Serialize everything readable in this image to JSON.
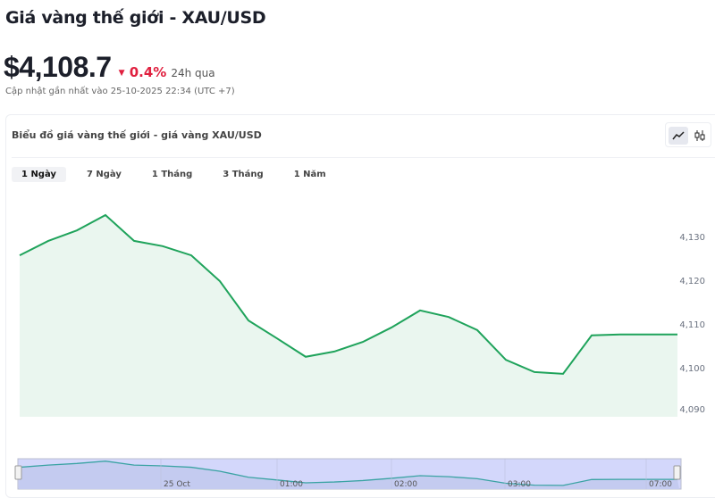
{
  "header": {
    "title": "Giá vàng thế giới - XAU/USD",
    "price": "$4,108.7",
    "change": "0.4%",
    "change_direction": "down",
    "change_color": "#e0203f",
    "change_period": "24h qua",
    "updated": "Cập nhật gần nhất vào 25-10-2025 22:34 (UTC +7)"
  },
  "card": {
    "title": "Biểu đồ giá vàng thế giới - giá vàng XAU/USD",
    "chart_types": [
      {
        "icon": "line-chart-icon",
        "active": true
      },
      {
        "icon": "candlestick-icon",
        "active": false
      }
    ]
  },
  "tabs": [
    {
      "label": "1 Ngày",
      "active": true
    },
    {
      "label": "7 Ngày"
    },
    {
      "label": "1 Tháng"
    },
    {
      "label": "3 Tháng"
    },
    {
      "label": "1 Năm"
    }
  ],
  "chart_data": {
    "type": "area",
    "line_color": "#1fa35b",
    "fill_color": "#eaf6ef",
    "y_ticks": [
      "4,090",
      "4,100",
      "4,110",
      "4,120",
      "4,130"
    ],
    "ylim": [
      4090,
      4135
    ],
    "values": [
      4125.9,
      4129.2,
      4131.6,
      4135.1,
      4129.2,
      4128.0,
      4125.9,
      4120.0,
      4111.0,
      4106.9,
      4102.7,
      4103.9,
      4106.1,
      4109.4,
      4113.3,
      4111.8,
      4108.8,
      4102.0,
      4099.2,
      4098.8,
      4107.6,
      4107.8,
      4107.8
    ],
    "navigator": {
      "labels": [
        "25 Oct",
        "01:00",
        "02:00",
        "03:00",
        "07:00"
      ]
    }
  }
}
